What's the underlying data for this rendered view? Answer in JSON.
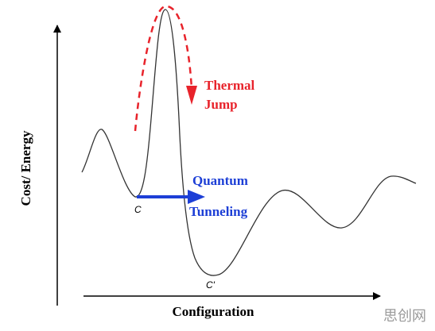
{
  "axes": {
    "y_label": "Cost/ Energy",
    "x_label": "Configuration"
  },
  "annotations": {
    "thermal": [
      "Thermal",
      "Jump"
    ],
    "quantum": [
      "Quantum",
      "Tunneling"
    ]
  },
  "points": {
    "start": "C",
    "end": "C'"
  },
  "watermark": "思创网"
}
